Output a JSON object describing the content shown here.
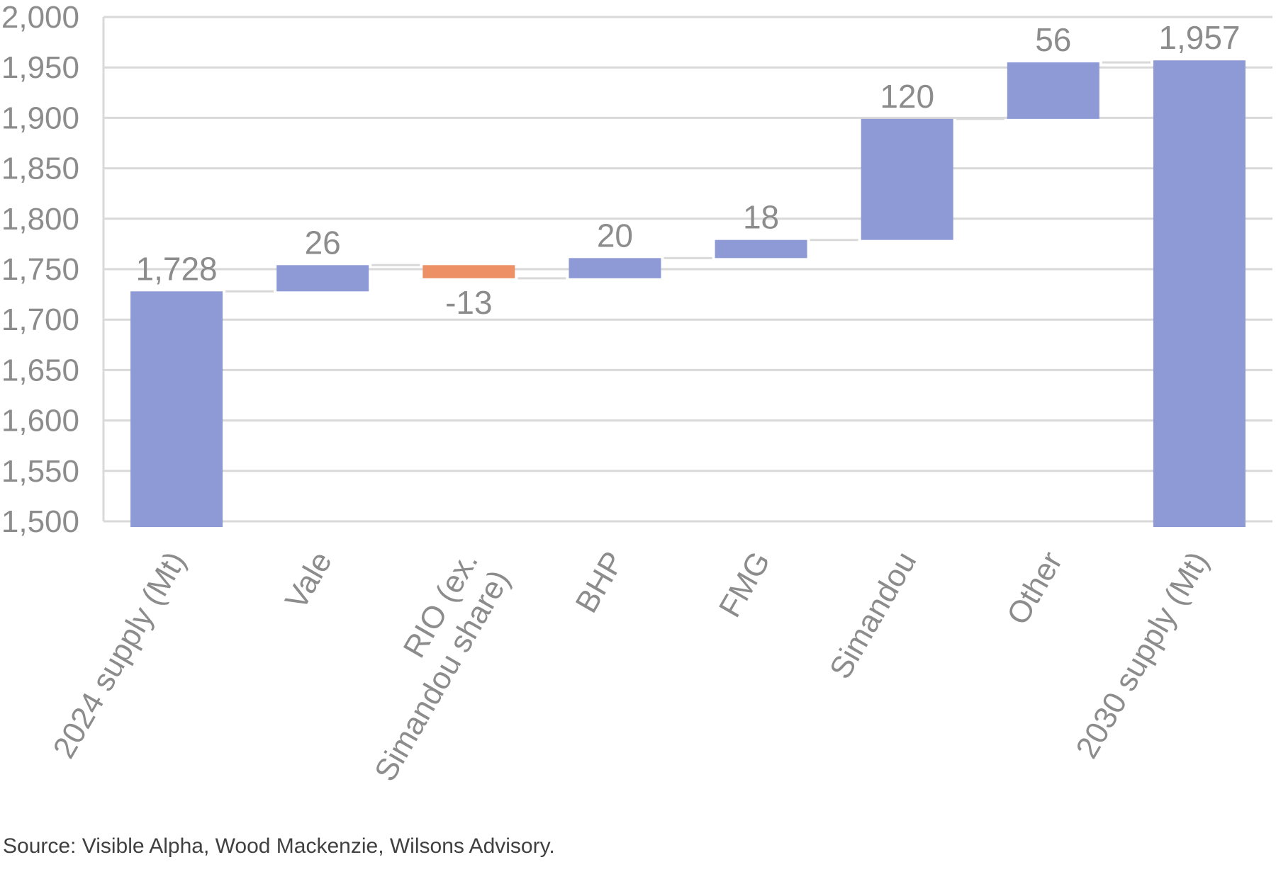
{
  "chart_data": {
    "type": "waterfall",
    "categories": [
      "2024 supply (Mt)",
      "Vale",
      "RIO (ex.\nSimandou share)",
      "BHP",
      "FMG",
      "Simandou",
      "Other",
      "2030 supply (Mt)"
    ],
    "steps": [
      {
        "category": "2024 supply (Mt)",
        "kind": "total",
        "value": 1728,
        "label": "1,728"
      },
      {
        "category": "Vale",
        "kind": "delta",
        "value": 26,
        "label": "26"
      },
      {
        "category": "RIO (ex.\nSimandou share)",
        "kind": "delta",
        "value": -13,
        "label": "-13"
      },
      {
        "category": "BHP",
        "kind": "delta",
        "value": 20,
        "label": "20"
      },
      {
        "category": "FMG",
        "kind": "delta",
        "value": 18,
        "label": "18"
      },
      {
        "category": "Simandou",
        "kind": "delta",
        "value": 120,
        "label": "120"
      },
      {
        "category": "Other",
        "kind": "delta",
        "value": 56,
        "label": "56"
      },
      {
        "category": "2030 supply (Mt)",
        "kind": "total",
        "value": 1957,
        "label": "1,957"
      }
    ],
    "ylim": [
      1500,
      2000
    ],
    "yticks": [
      1500,
      1550,
      1600,
      1650,
      1700,
      1750,
      1800,
      1850,
      1900,
      1950,
      2000
    ],
    "ytick_labels": [
      "1,500",
      "1,550",
      "1,600",
      "1,650",
      "1,700",
      "1,750",
      "1,800",
      "1,850",
      "1,900",
      "1,950",
      "2,000"
    ],
    "grid": true,
    "colors": {
      "increase": "#8e9ad6",
      "decrease": "#ee9066",
      "total": "#8e9ad6",
      "grid": "#d9d9d9",
      "text": "#8c8c8c"
    }
  },
  "source": "Source: Visible Alpha, Wood Mackenzie, Wilsons Advisory."
}
